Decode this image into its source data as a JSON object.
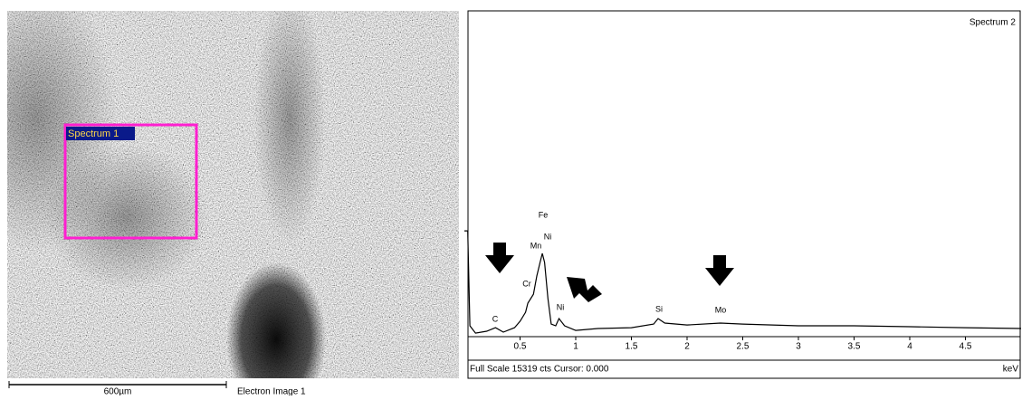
{
  "chart_data": {
    "type": "line",
    "title": "Spectrum 2",
    "status": "Full Scale 15319 cts Cursor: 0.000",
    "x_label": "keV",
    "x": [
      0.0,
      0.03,
      0.05,
      0.1,
      0.2,
      0.28,
      0.35,
      0.45,
      0.5,
      0.55,
      0.57,
      0.62,
      0.65,
      0.68,
      0.7,
      0.72,
      0.75,
      0.78,
      0.82,
      0.85,
      0.9,
      1.0,
      1.2,
      1.5,
      1.7,
      1.74,
      1.8,
      2.0,
      2.3,
      2.5,
      3.0,
      3.5,
      4.0,
      4.5,
      5.0
    ],
    "values": [
      5060,
      5060,
      520,
      170,
      260,
      430,
      215,
      430,
      735,
      1170,
      1600,
      2030,
      2900,
      3550,
      3980,
      3550,
      1820,
      600,
      520,
      865,
      520,
      300,
      390,
      430,
      600,
      865,
      650,
      560,
      650,
      600,
      520,
      520,
      475,
      430,
      390
    ],
    "color": "#000000",
    "xlim": [
      0,
      5
    ],
    "ylim": [
      0,
      15319
    ],
    "xticks": [
      0.5,
      1,
      1.5,
      2,
      2.5,
      3,
      3.5,
      4,
      4.5
    ],
    "annotations": [
      "C",
      "Cr",
      "Mn",
      "Ni",
      "Fe",
      "Ni",
      "Si",
      "Mo"
    ]
  },
  "image": {
    "region_label": "Spectrum 1",
    "scale_bar": "600µm",
    "caption": "Electron Image 1"
  }
}
